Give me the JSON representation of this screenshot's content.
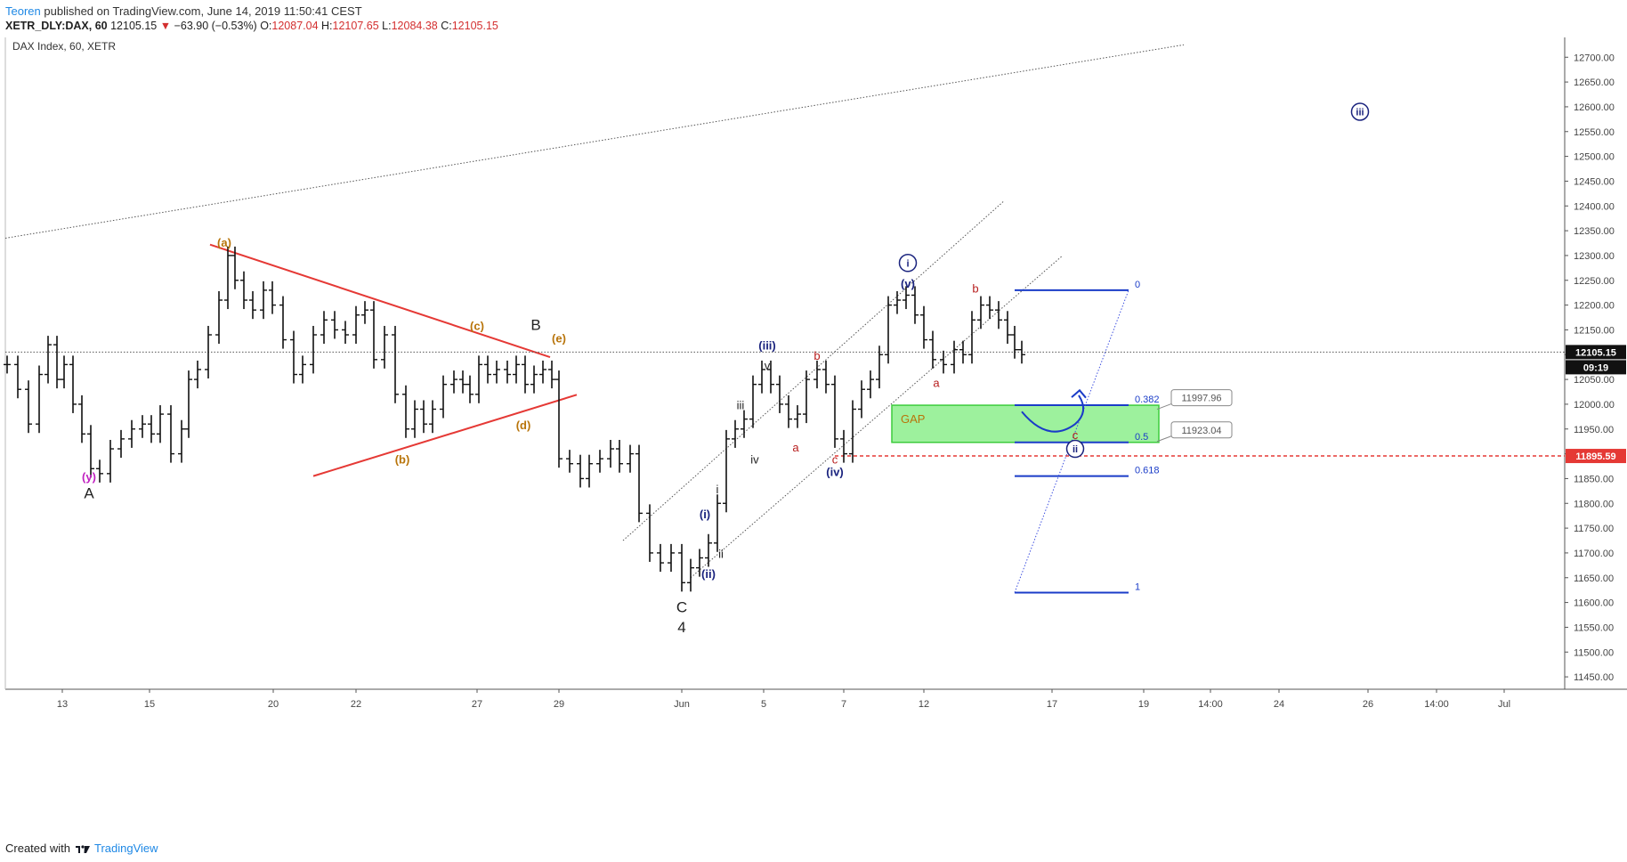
{
  "header": {
    "publisher": "Teoren",
    "published_text": "published on TradingView.com, June 14, 2019 11:50:41 CEST",
    "symbol": "XETR_DLY:DAX, 60",
    "last": "12105.15",
    "change_arrow": "▼",
    "change": "−63.90 (−0.53%)",
    "open_label": "O:",
    "open": "12087.04",
    "high_label": "H:",
    "high": "12107.65",
    "low_label": "L:",
    "low": "12084.38",
    "close_label": "C:",
    "close": "12105.15"
  },
  "footer": {
    "created_with": "Created with",
    "brand": "TradingView"
  },
  "chart_data": {
    "type": "line",
    "title": "DAX Index, 60, XETR",
    "y_range": [
      11425,
      12740
    ],
    "y_ticks": [
      12700,
      12650,
      12600,
      12550,
      12500,
      12450,
      12400,
      12350,
      12300,
      12250,
      12200,
      12150,
      12100,
      12050,
      12000,
      11950,
      11900,
      11850,
      11800,
      11750,
      11700,
      11650,
      11600,
      11550,
      11500,
      11450
    ],
    "y_tick_format": "2dp",
    "x_tick_labels": [
      {
        "t": 70,
        "label": "13"
      },
      {
        "t": 168,
        "label": "15"
      },
      {
        "t": 307,
        "label": "20"
      },
      {
        "t": 400,
        "label": "22"
      },
      {
        "t": 536,
        "label": "27"
      },
      {
        "t": 628,
        "label": "29"
      },
      {
        "t": 766,
        "label": "Jun"
      },
      {
        "t": 858,
        "label": "5"
      },
      {
        "t": 948,
        "label": "7"
      },
      {
        "t": 1038,
        "label": "12"
      },
      {
        "t": 1182,
        "label": "17"
      },
      {
        "t": 1285,
        "label": "19"
      },
      {
        "t": 1360,
        "label": "14:00"
      },
      {
        "t": 1437,
        "label": "24"
      },
      {
        "t": 1537,
        "label": "26"
      },
      {
        "t": 1614,
        "label": "14:00"
      },
      {
        "t": 1690,
        "label": "Jul"
      }
    ],
    "x_range": [
      0,
      1760
    ],
    "price_points": [
      [
        8,
        12080
      ],
      [
        20,
        12030
      ],
      [
        32,
        11960
      ],
      [
        44,
        12060
      ],
      [
        54,
        12120
      ],
      [
        64,
        12050
      ],
      [
        72,
        12080
      ],
      [
        82,
        12000
      ],
      [
        92,
        11940
      ],
      [
        102,
        11870
      ],
      [
        112,
        11860
      ],
      [
        124,
        11910
      ],
      [
        136,
        11930
      ],
      [
        148,
        11950
      ],
      [
        160,
        11960
      ],
      [
        170,
        11940
      ],
      [
        180,
        11980
      ],
      [
        192,
        11900
      ],
      [
        204,
        11950
      ],
      [
        212,
        12050
      ],
      [
        222,
        12070
      ],
      [
        234,
        12140
      ],
      [
        246,
        12210
      ],
      [
        256,
        12300
      ],
      [
        264,
        12250
      ],
      [
        274,
        12210
      ],
      [
        284,
        12190
      ],
      [
        296,
        12230
      ],
      [
        306,
        12200
      ],
      [
        318,
        12130
      ],
      [
        330,
        12060
      ],
      [
        340,
        12080
      ],
      [
        352,
        12140
      ],
      [
        364,
        12170
      ],
      [
        376,
        12150
      ],
      [
        388,
        12140
      ],
      [
        400,
        12180
      ],
      [
        410,
        12190
      ],
      [
        420,
        12090
      ],
      [
        432,
        12140
      ],
      [
        444,
        12020
      ],
      [
        456,
        11950
      ],
      [
        466,
        11990
      ],
      [
        476,
        11960
      ],
      [
        486,
        11990
      ],
      [
        498,
        12040
      ],
      [
        510,
        12050
      ],
      [
        520,
        12040
      ],
      [
        528,
        12020
      ],
      [
        538,
        12080
      ],
      [
        548,
        12060
      ],
      [
        558,
        12070
      ],
      [
        570,
        12060
      ],
      [
        580,
        12080
      ],
      [
        590,
        12040
      ],
      [
        600,
        12060
      ],
      [
        610,
        12070
      ],
      [
        620,
        12050
      ],
      [
        628,
        11890
      ],
      [
        640,
        11880
      ],
      [
        652,
        11850
      ],
      [
        662,
        11880
      ],
      [
        674,
        11890
      ],
      [
        686,
        11910
      ],
      [
        696,
        11880
      ],
      [
        708,
        11900
      ],
      [
        718,
        11780
      ],
      [
        730,
        11700
      ],
      [
        742,
        11680
      ],
      [
        754,
        11700
      ],
      [
        766,
        11640
      ],
      [
        776,
        11670
      ],
      [
        786,
        11690
      ],
      [
        796,
        11720
      ],
      [
        806,
        11800
      ],
      [
        816,
        11930
      ],
      [
        826,
        11950
      ],
      [
        836,
        11970
      ],
      [
        846,
        12040
      ],
      [
        856,
        12070
      ],
      [
        866,
        12040
      ],
      [
        876,
        12000
      ],
      [
        886,
        11970
      ],
      [
        896,
        11980
      ],
      [
        906,
        12050
      ],
      [
        918,
        12070
      ],
      [
        928,
        12040
      ],
      [
        938,
        11930
      ],
      [
        948,
        11900
      ],
      [
        958,
        11990
      ],
      [
        968,
        12030
      ],
      [
        978,
        12050
      ],
      [
        988,
        12100
      ],
      [
        998,
        12200
      ],
      [
        1008,
        12210
      ],
      [
        1018,
        12220
      ],
      [
        1028,
        12180
      ],
      [
        1038,
        12130
      ],
      [
        1048,
        12090
      ],
      [
        1060,
        12080
      ],
      [
        1072,
        12110
      ],
      [
        1082,
        12100
      ],
      [
        1092,
        12170
      ],
      [
        1102,
        12200
      ],
      [
        1112,
        12190
      ],
      [
        1122,
        12170
      ],
      [
        1132,
        12140
      ],
      [
        1140,
        12110
      ],
      [
        1148,
        12100
      ]
    ],
    "current_price": 12105.15,
    "current_price_label": "12105.15",
    "countdown_label": "09:19",
    "support_price": 11895.59,
    "support_label": "11895.59",
    "gap_zone": {
      "label": "GAP",
      "x0": 1002,
      "x1": 1302,
      "y_high": 11997.96,
      "y_low": 11923.04
    },
    "fib_levels": [
      {
        "ratio": "0",
        "price": 12230,
        "label": "0"
      },
      {
        "ratio": "0.382",
        "price": 11997.96,
        "label": "0.382"
      },
      {
        "ratio": "0.5",
        "price": 11923.04,
        "label": "0.5"
      },
      {
        "ratio": "0.618",
        "price": 11855,
        "label": "0.618"
      },
      {
        "ratio": "1",
        "price": 11620,
        "label": "1"
      }
    ],
    "fib_x": [
      1140,
      1268
    ],
    "price_callouts": [
      {
        "label": "11997.96",
        "price": 12015
      },
      {
        "label": "11923.04",
        "price": 11950
      }
    ],
    "wave_labels": [
      {
        "text": "(y)",
        "t": 100,
        "p": 11845,
        "color": "#c020c0"
      },
      {
        "text": "A",
        "t": 100,
        "p": 11810,
        "color": "#222"
      },
      {
        "text": "(a)",
        "t": 252,
        "p": 12318,
        "color": "#b8740a"
      },
      {
        "text": "(b)",
        "t": 452,
        "p": 11880,
        "color": "#b8740a"
      },
      {
        "text": "(c)",
        "t": 536,
        "p": 12150,
        "color": "#b8740a"
      },
      {
        "text": "(d)",
        "t": 588,
        "p": 11950,
        "color": "#b8740a"
      },
      {
        "text": "(e)",
        "t": 628,
        "p": 12125,
        "color": "#b8740a"
      },
      {
        "text": "B",
        "t": 602,
        "p": 12150,
        "color": "#222"
      },
      {
        "text": "C",
        "t": 766,
        "p": 11580,
        "color": "#222"
      },
      {
        "text": "4",
        "t": 766,
        "p": 11540,
        "color": "#222"
      },
      {
        "text": "(i)",
        "t": 792,
        "p": 11770,
        "color": "#1a237e"
      },
      {
        "text": "(ii)",
        "t": 796,
        "p": 11650,
        "color": "#1a237e"
      },
      {
        "text": "i",
        "t": 806,
        "p": 11820,
        "color": "#222"
      },
      {
        "text": "ii",
        "t": 810,
        "p": 11690,
        "color": "#222"
      },
      {
        "text": "iii",
        "t": 832,
        "p": 11990,
        "color": "#222"
      },
      {
        "text": "iv",
        "t": 848,
        "p": 11880,
        "color": "#222"
      },
      {
        "text": "v",
        "t": 862,
        "p": 12070,
        "color": "#222"
      },
      {
        "text": "(iii)",
        "t": 862,
        "p": 12110,
        "color": "#1a237e"
      },
      {
        "text": "a",
        "t": 894,
        "p": 11905,
        "color": "#b71c1c"
      },
      {
        "text": "b",
        "t": 918,
        "p": 12090,
        "color": "#b71c1c"
      },
      {
        "text": "c",
        "t": 938,
        "p": 11880,
        "color": "#b71c1c"
      },
      {
        "text": "(iv)",
        "t": 938,
        "p": 11855,
        "color": "#1a237e"
      },
      {
        "text": "(v)",
        "t": 1020,
        "p": 12235,
        "color": "#1a237e"
      },
      {
        "text": "a",
        "t": 1052,
        "p": 12035,
        "color": "#b71c1c"
      },
      {
        "text": "b",
        "t": 1096,
        "p": 12225,
        "color": "#b71c1c"
      },
      {
        "text": "c",
        "t": 1208,
        "p": 11930,
        "color": "#b71c1c"
      }
    ],
    "circled_labels": [
      {
        "text": "i",
        "t": 1020,
        "p": 12285,
        "color": "#1a237e"
      },
      {
        "text": "ii",
        "t": 1208,
        "p": 11910,
        "color": "#1a237e"
      },
      {
        "text": "iii",
        "t": 1528,
        "p": 12590,
        "color": "#1a237e"
      }
    ],
    "legend": "none",
    "grid": false
  }
}
